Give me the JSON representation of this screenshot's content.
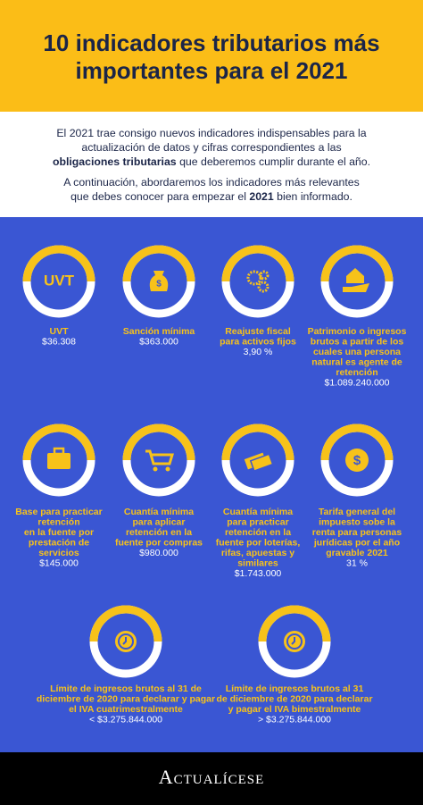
{
  "header": {
    "title": [
      "10 indicadores tributarios más",
      "importantes para el 2021"
    ]
  },
  "intro": {
    "paragraphs": [
      {
        "lines": [
          [
            {
              "text": "El 2021 trae consigo nuevos indicadores indispensables para la"
            }
          ],
          [
            {
              "text": "actualización de datos y cifras correspondientes a las"
            }
          ],
          [
            {
              "text": "obligaciones tributarias",
              "bold": true
            },
            {
              "text": " que deberemos cumplir durante el año."
            }
          ]
        ]
      },
      {
        "lines": [
          [
            {
              "text": "A continuación, abordaremos los indicadores más relevantes"
            }
          ],
          [
            {
              "text": "que debes conocer para empezar el "
            },
            {
              "text": "2021",
              "bold": true
            },
            {
              "text": " bien informado."
            }
          ]
        ]
      }
    ]
  },
  "items": [
    {
      "icon_text": "UVT",
      "label": [
        "UVT"
      ],
      "value": "$36.308"
    },
    {
      "label": [
        "Sanción mínima"
      ],
      "value": "$363.000"
    },
    {
      "label": [
        "Reajuste fiscal",
        "para activos fijos"
      ],
      "value": "3,90 %"
    },
    {
      "label": [
        "Patrimonio o ingresos",
        "brutos a partir de los",
        "cuales una persona",
        "natural es agente de",
        "retención"
      ],
      "value": "$1.089.240.000"
    },
    {
      "label": [
        "Base para practicar",
        "retención",
        "en la fuente por",
        "prestación de",
        "servicios"
      ],
      "value": "$145.000"
    },
    {
      "label": [
        "Cuantía mínima",
        "para aplicar",
        "retención en la",
        "fuente por compras"
      ],
      "value": "$980.000"
    },
    {
      "label": [
        "Cuantía mínima",
        "para practicar",
        "retención en la",
        "fuente por loterías,",
        "rifas, apuestas y",
        "similares"
      ],
      "value": "$1.743.000"
    },
    {
      "label": [
        "Tarifa general del",
        "impuesto sobe la",
        "renta para personas",
        "jurídicas por el año",
        "gravable 2021"
      ],
      "value": "31 %"
    },
    {
      "label": [
        "Límite de ingresos brutos al 31 de",
        "diciembre de 2020 para declarar y pagar",
        "el IVA cuatrimestralmente"
      ],
      "value": "< $3.275.844.000"
    },
    {
      "label": [
        "Límite de ingresos brutos al 31",
        "de diciembre de 2020 para declarar",
        "y pagar el IVA bimestralmente"
      ],
      "value": "> $3.275.844.000"
    }
  ],
  "footer": {
    "brand": "Actualícese"
  }
}
